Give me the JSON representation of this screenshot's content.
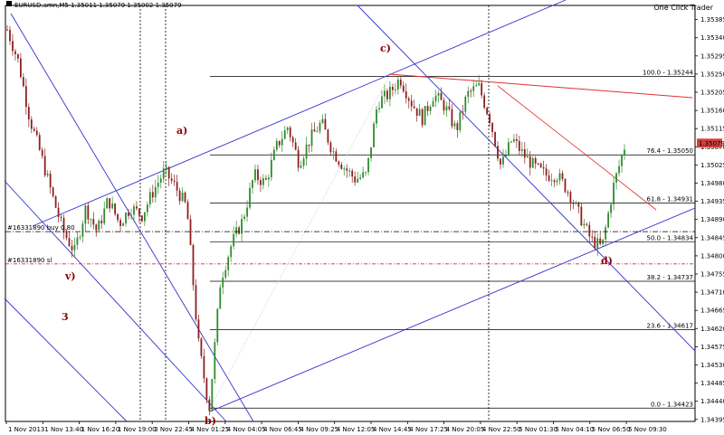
{
  "window": {
    "header": "EURUSD.amn,M5  1.35011 1.35079 1.35002 1.35079",
    "one_click": "One Click Trader"
  },
  "colors": {
    "bull": "#2e8b2e",
    "bear": "#8b2020",
    "channel": "#3333cc",
    "resistance": "#e03030",
    "wave": "#8b0000",
    "price_box": "#d04040",
    "fib": "#000000"
  },
  "chart_data": {
    "type": "candlestick",
    "symbol": "EURUSD.amn",
    "timeframe": "M5",
    "ohlc": {
      "open": 1.35011,
      "high": 1.35079,
      "low": 1.35002,
      "close": 1.35079
    },
    "current_price": "1.35079",
    "ylim": [
      1.3439,
      1.3542
    ],
    "y_ticks": [
      "1.35385",
      "1.35340",
      "1.35295",
      "1.35250",
      "1.35205",
      "1.35160",
      "1.35115",
      "1.35070",
      "1.35025",
      "1.34980",
      "1.34935",
      "1.34890",
      "1.34845",
      "1.34800",
      "1.34755",
      "1.34710",
      "1.34665",
      "1.34620",
      "1.34575",
      "1.34530",
      "1.34485",
      "1.34440",
      "1.34395"
    ],
    "x_ticks": [
      "1 Nov 2013",
      "1 Nov 13:40",
      "1 Nov 16:20",
      "1 Nov 19:00",
      "3 Nov 22:45",
      "4 Nov 01:25",
      "4 Nov 04:05",
      "4 Nov 06:45",
      "4 Nov 09:25",
      "4 Nov 12:05",
      "4 Nov 14:45",
      "4 Nov 17:25",
      "4 Nov 20:05",
      "4 Nov 22:50",
      "5 Nov 01:30",
      "5 Nov 04:10",
      "5 Nov 06:50",
      "5 Nov 09:30"
    ],
    "fibonacci": [
      {
        "label": "100.0 - 1.35244",
        "value": 1.35244
      },
      {
        "label": "76.4 - 1.35050",
        "value": 1.3505
      },
      {
        "label": "61.8 - 1.34931",
        "value": 1.34931
      },
      {
        "label": "50.0 - 1.34834",
        "value": 1.34834
      },
      {
        "label": "38.2 - 1.34737",
        "value": 1.34737
      },
      {
        "label": "23.6 - 1.34617",
        "value": 1.34617
      },
      {
        "label": "0.0 - 1.34423",
        "value": 1.34423
      }
    ],
    "orders": [
      {
        "label": "#16331890 buy 0.80",
        "value": 1.3486
      },
      {
        "label": "#16331890 sl",
        "value": 1.3478
      }
    ],
    "wave_labels": [
      "a)",
      "b)",
      "c)",
      "d)",
      "v)",
      "3"
    ],
    "path": [
      1.3536,
      1.3528,
      1.3514,
      1.3505,
      1.3495,
      1.3486,
      1.3481,
      1.3492,
      1.3486,
      1.3494,
      1.3488,
      1.3492,
      1.349,
      1.3496,
      1.3501,
      1.3497,
      1.3492,
      1.3459,
      1.3442,
      1.3474,
      1.3483,
      1.3489,
      1.35,
      1.3498,
      1.3507,
      1.3512,
      1.3503,
      1.3509,
      1.3513,
      1.3506,
      1.3502,
      1.3499,
      1.35,
      1.3518,
      1.352,
      1.3524,
      1.3518,
      1.3514,
      1.352,
      1.3517,
      1.3511,
      1.352,
      1.3522,
      1.3514,
      1.3502,
      1.3509,
      1.3505,
      1.3502,
      1.35,
      1.35,
      1.3496,
      1.349,
      1.3484,
      1.3482,
      1.3497,
      1.3507
    ]
  }
}
